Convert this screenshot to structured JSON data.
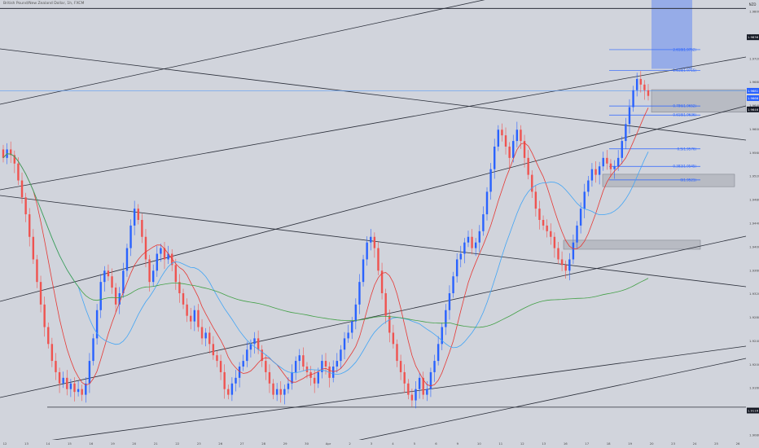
{
  "title": "British Pound/New Zealand Dollar, 1h, FXCM",
  "currency": "NZD",
  "axis": {
    "x_ticks": [
      "12",
      "13",
      "14",
      "15",
      "16",
      "19",
      "20",
      "21",
      "22",
      "23",
      "26",
      "27",
      "28",
      "29",
      "30",
      "Apr",
      "2",
      "3",
      "4",
      "5",
      "6",
      "9",
      "10",
      "11",
      "12",
      "13",
      "16",
      "17",
      "18",
      "19",
      "20",
      "23",
      "24",
      "25",
      "26"
    ],
    "y_ticks": [
      "1.9800",
      "1.9760",
      "1.9720",
      "1.9680",
      "1.9640",
      "1.9600",
      "1.9560",
      "1.9520",
      "1.9480",
      "1.9440",
      "1.9400",
      "1.9360",
      "1.9320",
      "1.9280",
      "1.9240",
      "1.9200",
      "1.9160",
      "1.9120",
      "1.9080"
    ],
    "price_badges": [
      {
        "label": "1.9836",
        "price": 1.9774,
        "color": "#131722"
      },
      {
        "label": "1.9681",
        "price": 1.9679,
        "color": "#2962ff"
      },
      {
        "label": "1.9666",
        "price": 1.9666,
        "color": "#2962ff"
      },
      {
        "label": "1.9646",
        "price": 1.9646,
        "color": "#131722"
      },
      {
        "label": "1.9116",
        "price": 1.9112,
        "color": "#131722"
      }
    ]
  },
  "fib_levels": [
    {
      "label": "4.236(1.9844)",
      "price": 1.9844
    },
    {
      "label": "2.618(1.9752)",
      "price": 1.9752
    },
    {
      "label": "1.618(1.9715)",
      "price": 1.9715
    },
    {
      "label": "0.786(1.9652)",
      "price": 1.9652
    },
    {
      "label": "0.618(1.9636)",
      "price": 1.9636
    },
    {
      "label": "0.5(1.9576)",
      "price": 1.9576
    },
    {
      "label": "0.382(1.9545)",
      "price": 1.9545
    },
    {
      "label": "0(1.9521)",
      "price": 1.9521
    }
  ],
  "chart_data": {
    "type": "candlestick",
    "title": "British Pound/New Zealand Dollar, 1h, FXCM",
    "ylim": [
      1.906,
      1.984
    ],
    "grid": false,
    "candles_close": [
      1.956,
      1.9575,
      1.9565,
      1.955,
      1.952,
      1.949,
      1.946,
      1.942,
      1.938,
      1.934,
      1.93,
      1.926,
      1.923,
      1.92,
      1.918,
      1.916,
      1.917,
      1.915,
      1.916,
      1.9145,
      1.915,
      1.914,
      1.916,
      1.92,
      1.924,
      1.929,
      1.934,
      1.936,
      1.935,
      1.933,
      1.93,
      1.932,
      1.936,
      1.94,
      1.944,
      1.947,
      1.945,
      1.942,
      1.938,
      1.934,
      1.936,
      1.939,
      1.94,
      1.938,
      1.939,
      1.937,
      1.934,
      1.932,
      1.93,
      1.928,
      1.927,
      1.929,
      1.926,
      1.924,
      1.925,
      1.923,
      1.921,
      1.92,
      1.918,
      1.915,
      1.914,
      1.916,
      1.917,
      1.919,
      1.92,
      1.922,
      1.923,
      1.924,
      1.922,
      1.92,
      1.918,
      1.916,
      1.914,
      1.915,
      1.914,
      1.915,
      1.916,
      1.918,
      1.92,
      1.921,
      1.919,
      1.918,
      1.917,
      1.916,
      1.918,
      1.92,
      1.919,
      1.917,
      1.919,
      1.92,
      1.922,
      1.924,
      1.925,
      1.927,
      1.93,
      1.934,
      1.938,
      1.941,
      1.942,
      1.94,
      1.936,
      1.932,
      1.928,
      1.925,
      1.923,
      1.92,
      1.918,
      1.916,
      1.914,
      1.913,
      1.915,
      1.917,
      1.914,
      1.915,
      1.918,
      1.92,
      1.923,
      1.926,
      1.929,
      1.932,
      1.935,
      1.938,
      1.939,
      1.941,
      1.942,
      1.94,
      1.941,
      1.943,
      1.946,
      1.95,
      1.954,
      1.958,
      1.961,
      1.96,
      1.958,
      1.956,
      1.959,
      1.961,
      1.959,
      1.956,
      1.953,
      1.95,
      1.947,
      1.945,
      1.944,
      1.943,
      1.942,
      1.94,
      1.938,
      1.937,
      1.936,
      1.938,
      1.941,
      1.944,
      1.947,
      1.95,
      1.952,
      1.954,
      1.953,
      1.9545,
      1.956,
      1.955,
      1.954,
      1.9545,
      1.956,
      1.959,
      1.962,
      1.965,
      1.968,
      1.97,
      1.969,
      1.968,
      1.967
    ],
    "moving_averages": [
      {
        "color": "#e53935",
        "period": 9
      },
      {
        "color": "#42a5f5",
        "period": 21
      },
      {
        "color": "#43a047",
        "period": 120
      }
    ],
    "zones": [
      {
        "from": 1.9718,
        "to": 1.9852
      },
      {
        "from": 1.9641,
        "to": 1.9681
      },
      {
        "from": 1.9509,
        "to": 1.9531
      },
      {
        "from": 1.9398,
        "to": 1.9414
      }
    ],
    "horizontal_lines": [
      1.9825,
      1.9679,
      1.9118
    ]
  }
}
